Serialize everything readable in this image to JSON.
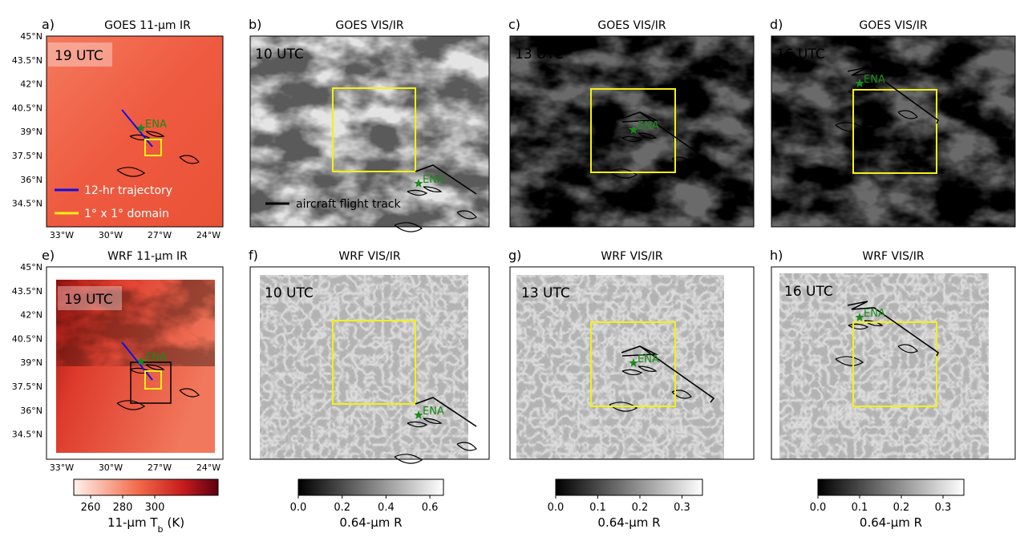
{
  "panels": [
    {
      "label": "a)",
      "title": "GOES 11-μm IR",
      "time": "19 UTC"
    },
    {
      "label": "b)",
      "title": "GOES VIS/IR",
      "time": "10 UTC"
    },
    {
      "label": "c)",
      "title": "GOES VIS/IR",
      "time": "13 UTC"
    },
    {
      "label": "d)",
      "title": "GOES VIS/IR",
      "time": "16 UTC"
    },
    {
      "label": "e)",
      "title": "WRF 11-μm IR",
      "time": "19 UTC"
    },
    {
      "label": "f)",
      "title": "WRF VIS/IR",
      "time": "10 UTC"
    },
    {
      "label": "g)",
      "title": "WRF VIS/IR",
      "time": "13 UTC"
    },
    {
      "label": "h)",
      "title": "WRF VIS/IR",
      "time": "16 UTC"
    }
  ],
  "map_axes": {
    "lat_labels": [
      "45°N",
      "43.5°N",
      "42°N",
      "40.5°N",
      "39°N",
      "37.5°N",
      "36°N",
      "34.5°N"
    ],
    "lon_labels": [
      "33°W",
      "30°W",
      "27°W",
      "24°W"
    ]
  },
  "legend": [
    "12-hr trajectory",
    "1° x 1° domain"
  ],
  "site_label": "ENA",
  "flight_track_label": "aircraft flight track",
  "colorbars": [
    {
      "ticks": [
        "260",
        "280",
        "300"
      ],
      "label": "11-μm T",
      "label_sub": "b",
      "label_unit": "(K)"
    },
    {
      "ticks": [
        "0.0",
        "0.2",
        "0.4",
        "0.6"
      ],
      "label": "0.64-μm R"
    },
    {
      "ticks": [
        "0.0",
        "0.1",
        "0.2",
        "0.3"
      ],
      "label": "0.64-μm R"
    },
    {
      "ticks": [
        "0.0",
        "0.1",
        "0.2",
        "0.3"
      ],
      "label": "0.64-μm R"
    }
  ]
}
